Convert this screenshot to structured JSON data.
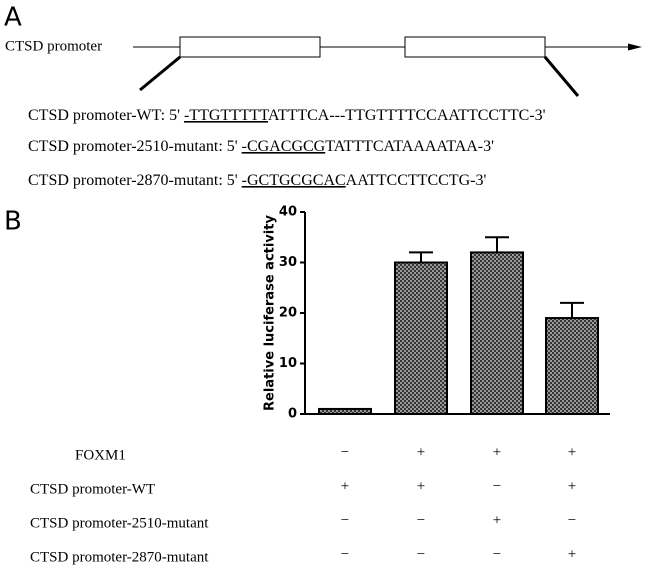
{
  "panel_a": {
    "label": "A",
    "promoter_label": "CTSD promoter",
    "sequences": [
      {
        "prefix": "CTSD promoter-WT: 5' ",
        "underlined": "-TTGTTTTT",
        "rest": "ATTTCA---TTGTTTTCCAATTCCTTC-3'"
      },
      {
        "prefix": "CTSD promoter-2510-mutant: 5' ",
        "underlined": "-CGACGCG",
        "rest": "TATTTCATAAAATAA-3'"
      },
      {
        "prefix": "CTSD promoter-2870-mutant: 5' ",
        "underlined": "-GCTGCGCAC",
        "rest": "AATTCCTTCCTG-3'"
      }
    ]
  },
  "panel_b": {
    "label": "B"
  },
  "chart_data": {
    "type": "bar",
    "ylabel": "Relative luciferase activity",
    "categories": [
      null,
      null,
      null,
      null
    ],
    "values": [
      1,
      30,
      32,
      19
    ],
    "errors": [
      0,
      2,
      3,
      3
    ],
    "color": "#9a9a9a",
    "ylim": [
      0,
      40
    ],
    "yticks": [
      0,
      10,
      20,
      30,
      40
    ]
  },
  "conditions": {
    "rows": [
      {
        "label": "FOXM1",
        "marks": [
          "−",
          "+",
          "+",
          "+"
        ]
      },
      {
        "label": "CTSD promoter-WT",
        "marks": [
          "+",
          "+",
          "−",
          "+"
        ]
      },
      {
        "label": "CTSD promoter-2510-mutant",
        "marks": [
          "−",
          "−",
          "+",
          "−"
        ]
      },
      {
        "label": "CTSD promoter-2870-mutant",
        "marks": [
          "−",
          "−",
          "−",
          "+"
        ]
      }
    ]
  }
}
